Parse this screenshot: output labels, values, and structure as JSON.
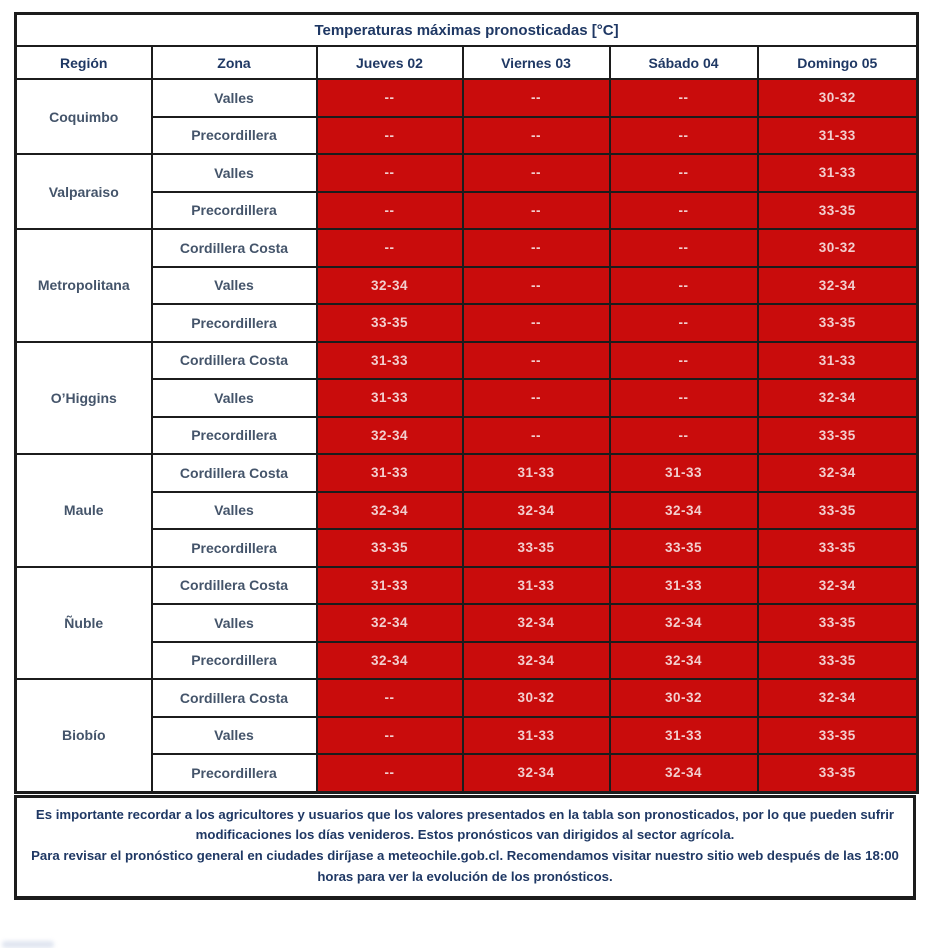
{
  "title": "Temperaturas máximas pronosticadas [°C]",
  "columns": [
    "Región",
    "Zona",
    "Jueves 02",
    "Viernes 03",
    "Sábado 04",
    "Domingo 05"
  ],
  "regions": [
    {
      "name": "Coquimbo",
      "zones": [
        {
          "zone": "Valles",
          "values": [
            "--",
            "--",
            "--",
            "30-32"
          ]
        },
        {
          "zone": "Precordillera",
          "values": [
            "--",
            "--",
            "--",
            "31-33"
          ]
        }
      ]
    },
    {
      "name": "Valparaiso",
      "zones": [
        {
          "zone": "Valles",
          "values": [
            "--",
            "--",
            "--",
            "31-33"
          ]
        },
        {
          "zone": "Precordillera",
          "values": [
            "--",
            "--",
            "--",
            "33-35"
          ]
        }
      ]
    },
    {
      "name": "Metropolitana",
      "zones": [
        {
          "zone": "Cordillera Costa",
          "values": [
            "--",
            "--",
            "--",
            "30-32"
          ]
        },
        {
          "zone": "Valles",
          "values": [
            "32-34",
            "--",
            "--",
            "32-34"
          ]
        },
        {
          "zone": "Precordillera",
          "values": [
            "33-35",
            "--",
            "--",
            "33-35"
          ]
        }
      ]
    },
    {
      "name": "O’Higgins",
      "zones": [
        {
          "zone": "Cordillera Costa",
          "values": [
            "31-33",
            "--",
            "--",
            "31-33"
          ]
        },
        {
          "zone": "Valles",
          "values": [
            "31-33",
            "--",
            "--",
            "32-34"
          ]
        },
        {
          "zone": "Precordillera",
          "values": [
            "32-34",
            "--",
            "--",
            "33-35"
          ]
        }
      ]
    },
    {
      "name": "Maule",
      "zones": [
        {
          "zone": "Cordillera Costa",
          "values": [
            "31-33",
            "31-33",
            "31-33",
            "32-34"
          ]
        },
        {
          "zone": "Valles",
          "values": [
            "32-34",
            "32-34",
            "32-34",
            "33-35"
          ]
        },
        {
          "zone": "Precordillera",
          "values": [
            "33-35",
            "33-35",
            "33-35",
            "33-35"
          ]
        }
      ]
    },
    {
      "name": "Ñuble",
      "zones": [
        {
          "zone": "Cordillera Costa",
          "values": [
            "31-33",
            "31-33",
            "31-33",
            "32-34"
          ]
        },
        {
          "zone": "Valles",
          "values": [
            "32-34",
            "32-34",
            "32-34",
            "33-35"
          ]
        },
        {
          "zone": "Precordillera",
          "values": [
            "32-34",
            "32-34",
            "32-34",
            "33-35"
          ]
        }
      ]
    },
    {
      "name": "Biobío",
      "zones": [
        {
          "zone": "Cordillera Costa",
          "values": [
            "--",
            "30-32",
            "30-32",
            "32-34"
          ]
        },
        {
          "zone": "Valles",
          "values": [
            "--",
            "31-33",
            "31-33",
            "33-35"
          ]
        },
        {
          "zone": "Precordillera",
          "values": [
            "--",
            "32-34",
            "32-34",
            "33-35"
          ]
        }
      ]
    }
  ],
  "footer": {
    "line1": "Es importante recordar a los agricultores y usuarios que los valores presentados en la tabla son pronosticados, por lo que pueden sufrir modificaciones los días venideros. Estos pronósticos van dirigidos al sector agrícola.",
    "line2": "Para revisar el pronóstico general en ciudades diríjase a meteochile.gob.cl. Recomendamos visitar nuestro sitio web después de las 18:00 horas para ver la evolución de los pronósticos."
  },
  "colors": {
    "cell_red": "#C90C0C",
    "header_text": "#1F3864",
    "label_text": "#44546A",
    "value_text": "#F2CECE",
    "border": "#1c1c1c"
  }
}
